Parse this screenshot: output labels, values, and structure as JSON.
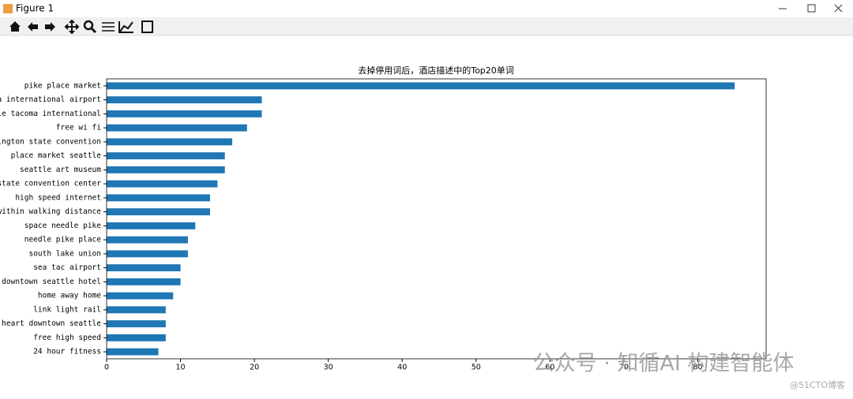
{
  "window": {
    "title": "Figure 1"
  },
  "chart_data": {
    "type": "barh",
    "title": "去掉停用词后，酒店描述中的Top20单词",
    "categories": [
      "pike place market",
      "tacoma international airport",
      "seattle tacoma international",
      "free wi fi",
      "washington state convention",
      "place market seattle",
      "seattle art museum",
      "state convention center",
      "high speed internet",
      "within walking distance",
      "space needle pike",
      "needle pike place",
      "south lake union",
      "sea tac airport",
      "downtown seattle hotel",
      "home away home",
      "link light rail",
      "heart downtown seattle",
      "free high speed",
      "24 hour fitness"
    ],
    "values": [
      85,
      21,
      21,
      19,
      17,
      16,
      16,
      15,
      14,
      14,
      12,
      11,
      11,
      10,
      10,
      9,
      8,
      8,
      8,
      7
    ],
    "color": "#1f77b4",
    "xlim": [
      0,
      89.25
    ],
    "xticks": [
      0,
      10,
      20,
      30,
      40,
      50,
      60,
      70,
      80
    ]
  },
  "watermark": {
    "main": "公众号 · 知循AI 构建智能体",
    "corner": "@51CTO博客"
  }
}
